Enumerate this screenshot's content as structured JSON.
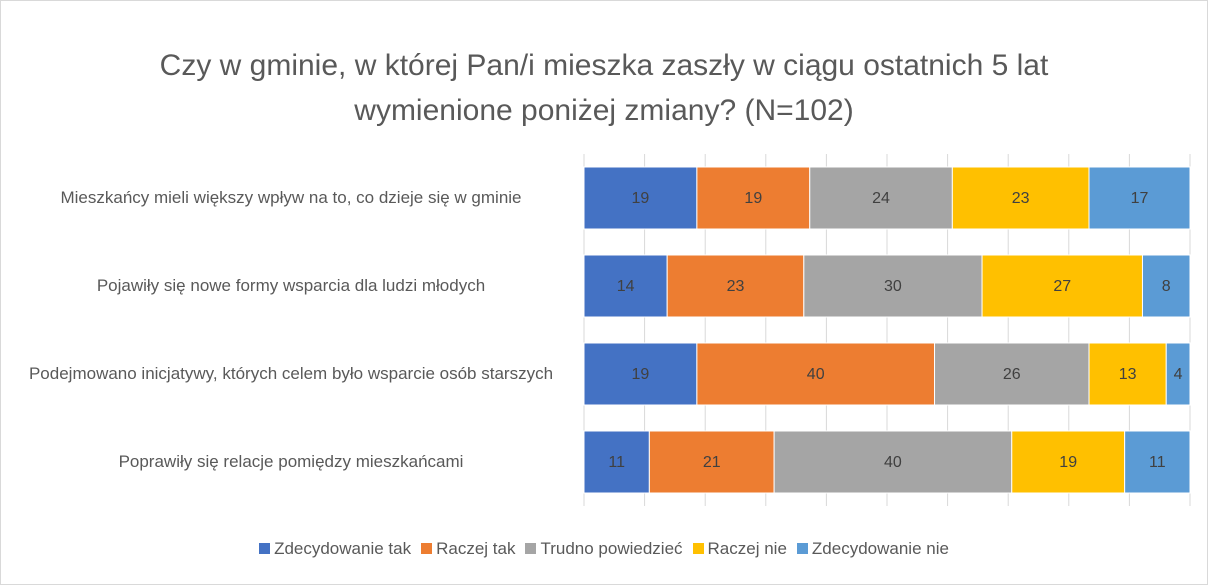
{
  "chart_data": {
    "type": "stacked_barh",
    "title": "Czy w gminie, w której Pan/i mieszka zaszły w ciągu ostatnich 5 lat wymienione poniżej zmiany? (N=102)",
    "categories": [
      "Mieszkańcy mieli większy wpływ na to, co dzieje się w gminie",
      "Pojawiły się nowe formy wsparcia dla ludzi młodych",
      "Podejmowano inicjatywy, których celem było wsparcie osób starszych",
      "Poprawiły się relacje pomiędzy mieszkańcami"
    ],
    "series": [
      {
        "name": "Zdecydowanie tak",
        "color": "#4472c4",
        "values": [
          19,
          14,
          19,
          11
        ]
      },
      {
        "name": "Raczej tak",
        "color": "#ed7d31",
        "values": [
          19,
          23,
          40,
          21
        ]
      },
      {
        "name": "Trudno powiedzieć",
        "color": "#a5a5a5",
        "values": [
          24,
          30,
          26,
          40
        ]
      },
      {
        "name": "Raczej nie",
        "color": "#ffc000",
        "values": [
          23,
          27,
          13,
          19
        ]
      },
      {
        "name": "Zdecydowanie nie",
        "color": "#5b9bd5",
        "values": [
          17,
          8,
          4,
          11
        ]
      }
    ],
    "xlim": [
      0,
      102
    ],
    "xticks": [
      0,
      10.2,
      20.4,
      30.6,
      40.8,
      51,
      61.2,
      71.4,
      81.6,
      91.8,
      102
    ],
    "grid": true,
    "legend": "bottom"
  }
}
